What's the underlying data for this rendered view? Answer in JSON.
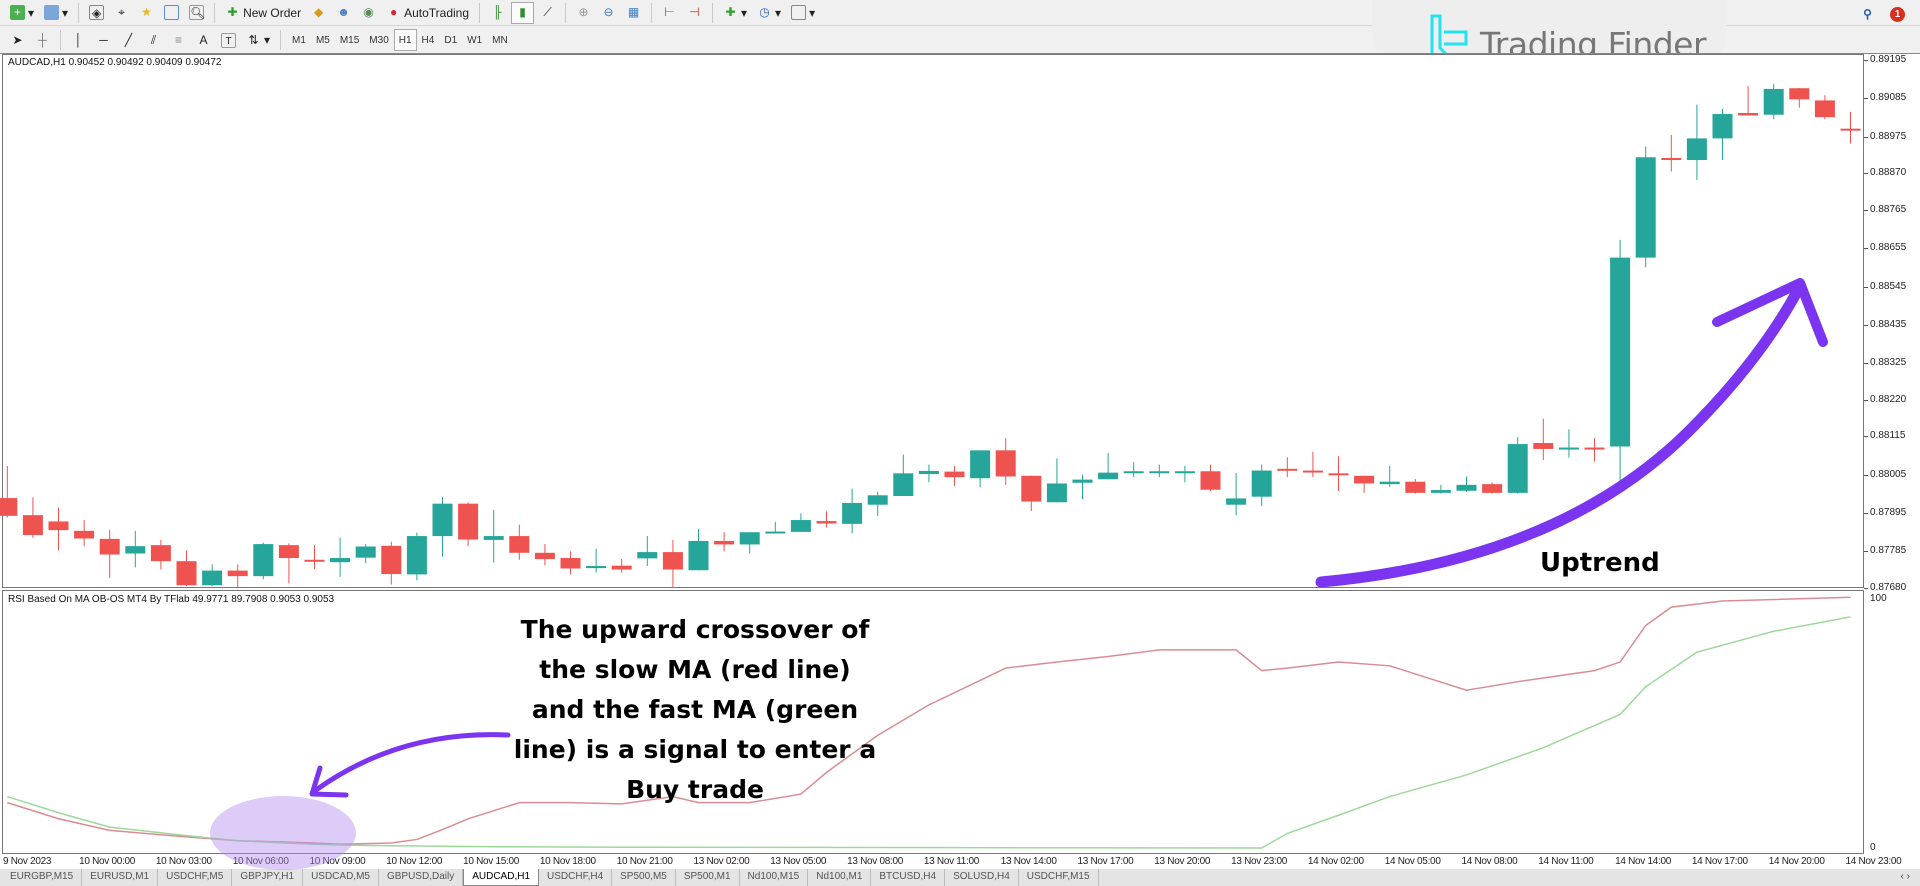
{
  "toolbar": {
    "new_order": "New Order",
    "auto_trading": "AutoTrading",
    "timeframes": [
      "M1",
      "M5",
      "M15",
      "M30",
      "H1",
      "H4",
      "D1",
      "W1",
      "MN"
    ],
    "active_timeframe": "H1",
    "notification_count": "1"
  },
  "logo": {
    "text": "Trading Finder",
    "color": "#22e3ef"
  },
  "chart": {
    "title": "AUDCAD,H1  0.90452 0.90492 0.90409 0.90472",
    "indicator_title": "RSI Based On MA OB-OS MT4 By TFlab 49.9771 89.7908 0.9053 0.9053",
    "bull_color": "#26a69a",
    "bear_color": "#ef5350"
  },
  "chart_data": [
    {
      "type": "candlestick",
      "symbol": "AUDCAD,H1",
      "ylim": [
        0.8768,
        0.89195
      ],
      "y_ticks": [
        "0.89195",
        "0.89085",
        "0.88975",
        "0.88870",
        "0.88765",
        "0.88655",
        "0.88545",
        "0.88435",
        "0.88325",
        "0.88220",
        "0.88115",
        "0.88005",
        "0.87895",
        "0.87785",
        "0.87680"
      ],
      "x_tick_labels": [
        "9 Nov 2023",
        "10 Nov 00:00",
        "10 Nov 03:00",
        "10 Nov 06:00",
        "10 Nov 09:00",
        "10 Nov 12:00",
        "10 Nov 15:00",
        "10 Nov 18:00",
        "10 Nov 21:00",
        "13 Nov 02:00",
        "13 Nov 05:00",
        "13 Nov 08:00",
        "13 Nov 11:00",
        "13 Nov 14:00",
        "13 Nov 17:00",
        "13 Nov 20:00",
        "13 Nov 23:00",
        "14 Nov 02:00",
        "14 Nov 05:00",
        "14 Nov 08:00",
        "14 Nov 11:00",
        "14 Nov 14:00",
        "14 Nov 17:00",
        "14 Nov 20:00",
        "14 Nov 23:00"
      ],
      "ohlc": [
        [
          0.87938,
          0.8803,
          0.87882,
          0.87887
        ],
        [
          0.87889,
          0.8794,
          0.87824,
          0.87832
        ],
        [
          0.87871,
          0.87911,
          0.87788,
          0.87846
        ],
        [
          0.87844,
          0.87875,
          0.87799,
          0.87822
        ],
        [
          0.87821,
          0.87847,
          0.87709,
          0.87776
        ],
        [
          0.87779,
          0.87844,
          0.87739,
          0.878
        ],
        [
          0.87803,
          0.87818,
          0.87734,
          0.87757
        ],
        [
          0.87757,
          0.87788,
          0.87685,
          0.87688
        ],
        [
          0.87688,
          0.87748,
          0.87685,
          0.8773
        ],
        [
          0.8773,
          0.87748,
          0.87677,
          0.87714
        ],
        [
          0.87714,
          0.8781,
          0.87705,
          0.87806
        ],
        [
          0.87803,
          0.87808,
          0.87693,
          0.87766
        ],
        [
          0.87761,
          0.87803,
          0.87734,
          0.87757
        ],
        [
          0.87754,
          0.87824,
          0.87712,
          0.87766
        ],
        [
          0.87767,
          0.87806,
          0.87751,
          0.87799
        ],
        [
          0.87801,
          0.87813,
          0.8769,
          0.8772
        ],
        [
          0.87719,
          0.87839,
          0.87702,
          0.87829
        ],
        [
          0.87829,
          0.87941,
          0.8777,
          0.87922
        ],
        [
          0.87922,
          0.87926,
          0.878,
          0.87819
        ],
        [
          0.87818,
          0.87904,
          0.87753,
          0.87829
        ],
        [
          0.87829,
          0.87862,
          0.87761,
          0.87781
        ],
        [
          0.87781,
          0.87806,
          0.87745,
          0.87763
        ],
        [
          0.87766,
          0.87785,
          0.87719,
          0.87736
        ],
        [
          0.87737,
          0.87793,
          0.87724,
          0.87743
        ],
        [
          0.87744,
          0.87763,
          0.87724,
          0.87733
        ],
        [
          0.87765,
          0.87829,
          0.87743,
          0.87783
        ],
        [
          0.87783,
          0.87818,
          0.87679,
          0.87733
        ],
        [
          0.87731,
          0.8785,
          0.87731,
          0.87815
        ],
        [
          0.87815,
          0.8784,
          0.87785,
          0.87805
        ],
        [
          0.87805,
          0.8784,
          0.87779,
          0.8784
        ],
        [
          0.8784,
          0.8787,
          0.87838,
          0.87842
        ],
        [
          0.87841,
          0.87894,
          0.87841,
          0.87875
        ],
        [
          0.87872,
          0.879,
          0.87854,
          0.87865
        ],
        [
          0.87864,
          0.87965,
          0.87837,
          0.87924
        ],
        [
          0.87919,
          0.87956,
          0.87887,
          0.87946
        ],
        [
          0.87944,
          0.88063,
          0.87944,
          0.88009
        ],
        [
          0.88007,
          0.88034,
          0.87983,
          0.88016
        ],
        [
          0.88014,
          0.8803,
          0.87973,
          0.87998
        ],
        [
          0.87995,
          0.88075,
          0.87969,
          0.88075
        ],
        [
          0.88075,
          0.8811,
          0.87976,
          0.88
        ],
        [
          0.88002,
          0.88002,
          0.87901,
          0.87928
        ],
        [
          0.87926,
          0.88052,
          0.87926,
          0.8798
        ],
        [
          0.87982,
          0.88005,
          0.87935,
          0.87991
        ],
        [
          0.87992,
          0.88067,
          0.87992,
          0.88011
        ],
        [
          0.88012,
          0.88041,
          0.87998,
          0.88015
        ],
        [
          0.88013,
          0.88034,
          0.87998,
          0.88015
        ],
        [
          0.88015,
          0.88031,
          0.87983,
          0.88015
        ],
        [
          0.88015,
          0.88034,
          0.87958,
          0.87962
        ],
        [
          0.87919,
          0.8801,
          0.87889,
          0.87937
        ],
        [
          0.87942,
          0.88034,
          0.87915,
          0.88017
        ],
        [
          0.88022,
          0.88055,
          0.87998,
          0.88018
        ],
        [
          0.88017,
          0.88071,
          0.87998,
          0.88012
        ],
        [
          0.88009,
          0.88058,
          0.87958,
          0.88007
        ],
        [
          0.88002,
          0.88002,
          0.87953,
          0.8798
        ],
        [
          0.87978,
          0.8803,
          0.8797,
          0.87985
        ],
        [
          0.87985,
          0.87993,
          0.87951,
          0.87953
        ],
        [
          0.87953,
          0.87976,
          0.87951,
          0.87961
        ],
        [
          0.87959,
          0.88,
          0.87956,
          0.87976
        ],
        [
          0.87978,
          0.87983,
          0.87951,
          0.87953
        ],
        [
          0.87953,
          0.88113,
          0.87951,
          0.88093
        ],
        [
          0.88096,
          0.88166,
          0.88047,
          0.88079
        ],
        [
          0.88079,
          0.88135,
          0.88054,
          0.88083
        ],
        [
          0.88083,
          0.8811,
          0.88043,
          0.88082
        ],
        [
          0.88086,
          0.88679,
          0.87973,
          0.88628
        ],
        [
          0.88628,
          0.88947,
          0.886,
          0.88916
        ],
        [
          0.88914,
          0.8898,
          0.88875,
          0.88908
        ],
        [
          0.88908,
          0.89067,
          0.88851,
          0.8897
        ],
        [
          0.8897,
          0.89055,
          0.88908,
          0.8904
        ],
        [
          0.89043,
          0.8912,
          0.89036,
          0.89036
        ],
        [
          0.89038,
          0.89127,
          0.89025,
          0.89112
        ],
        [
          0.89114,
          0.89114,
          0.89058,
          0.89082
        ],
        [
          0.89079,
          0.89094,
          0.89025,
          0.89031
        ],
        [
          0.88998,
          0.89046,
          0.88955,
          0.88995
        ]
      ],
      "first_bar": "9 Nov 2023 21:00"
    },
    {
      "type": "line",
      "title": "RSI Based On MA OB-OS MT4 By TFlab",
      "ylim": [
        0,
        100
      ],
      "y_ticks": [
        "100",
        "0"
      ],
      "series": [
        {
          "color": "#d98c95",
          "points": [
            [
              "9 Nov 21:00",
              18
            ],
            [
              "9 Nov 23:00",
              11.6
            ],
            [
              "10 Nov 01:00",
              7
            ],
            [
              "10 Nov 04:00",
              4.4
            ],
            [
              "10 Nov 06:00",
              2.9
            ],
            [
              "10 Nov 09:00",
              2
            ],
            [
              "10 Nov 10:00",
              1.5
            ],
            [
              "10 Nov 12:00",
              2
            ],
            [
              "10 Nov 13:00",
              3.4
            ],
            [
              "10 Nov 14:00",
              7.3
            ],
            [
              "10 Nov 15:00",
              11.6
            ],
            [
              "10 Nov 17:00",
              18
            ],
            [
              "10 Nov 19:00",
              18
            ],
            [
              "10 Nov 21:00",
              17.5
            ],
            [
              "10 Nov 23:00",
              20.4
            ],
            [
              "13 Nov 02:00",
              18
            ],
            [
              "13 Nov 04:00",
              18
            ],
            [
              "13 Nov 06:00",
              21.4
            ],
            [
              "13 Nov 07:00",
              30
            ],
            [
              "13 Nov 09:00",
              44.7
            ],
            [
              "13 Nov 11:00",
              56.8
            ],
            [
              "13 Nov 13:00",
              66.5
            ],
            [
              "13 Nov 14:00",
              71.4
            ],
            [
              "13 Nov 16:00",
              73.8
            ],
            [
              "13 Nov 18:00",
              76
            ],
            [
              "13 Nov 20:00",
              78.6
            ],
            [
              "13 Nov 23:00",
              78.6
            ],
            [
              "14 Nov 00:00",
              70.4
            ],
            [
              "14 Nov 01:00",
              71.4
            ],
            [
              "14 Nov 03:00",
              73.8
            ],
            [
              "14 Nov 05:00",
              72.3
            ],
            [
              "14 Nov 08:00",
              62.6
            ],
            [
              "14 Nov 10:00",
              66
            ],
            [
              "14 Nov 13:00",
              70.4
            ],
            [
              "14 Nov 14:00",
              73.8
            ],
            [
              "14 Nov 15:00",
              88.3
            ],
            [
              "14 Nov 16:00",
              95.6
            ],
            [
              "14 Nov 18:00",
              98
            ],
            [
              "14 Nov 23:00",
              99.5
            ]
          ]
        },
        {
          "color": "#9ed89a",
          "points": [
            [
              "9 Nov 21:00",
              20.4
            ],
            [
              "9 Nov 23:00",
              14
            ],
            [
              "10 Nov 01:00",
              8.3
            ],
            [
              "10 Nov 04:00",
              4.9
            ],
            [
              "10 Nov 06:00",
              2.9
            ],
            [
              "10 Nov 09:00",
              1.5
            ],
            [
              "10 Nov 11:00",
              1
            ],
            [
              "10 Nov 16:00",
              0.5
            ],
            [
              "10 Nov 21:00",
              0.3
            ],
            [
              "14 Nov 00:00",
              0
            ],
            [
              "14 Nov 01:00",
              5.8
            ],
            [
              "14 Nov 03:00",
              13
            ],
            [
              "14 Nov 05:00",
              20.4
            ],
            [
              "14 Nov 08:00",
              29
            ],
            [
              "14 Nov 11:00",
              39.8
            ],
            [
              "14 Nov 14:00",
              53
            ],
            [
              "14 Nov 15:00",
              64
            ],
            [
              "14 Nov 17:00",
              77.7
            ],
            [
              "14 Nov 20:00",
              86
            ],
            [
              "14 Nov 23:00",
              91.7
            ]
          ]
        }
      ]
    }
  ],
  "annotations": {
    "uptrend": "Uptrend",
    "signal_lines": [
      "The upward crossover of",
      "the slow MA (red line)",
      "and the fast MA (green",
      "line) is a signal to enter a",
      "Buy trade"
    ],
    "arrow_color": "#7b35f0"
  },
  "tabs": [
    "EURGBP,M15",
    "EURUSD,M1",
    "USDCHF,M5",
    "GBPJPY,H1",
    "USDCAD,M5",
    "GBPUSD,Daily",
    "AUDCAD,H1",
    "USDCHF,H4",
    "SP500,M5",
    "SP500,M1",
    "Nd100,M15",
    "Nd100,M1",
    "BTCUSD,H4",
    "SOLUSD,H4",
    "USDCHF,M15"
  ],
  "active_tab": "AUDCAD,H1"
}
